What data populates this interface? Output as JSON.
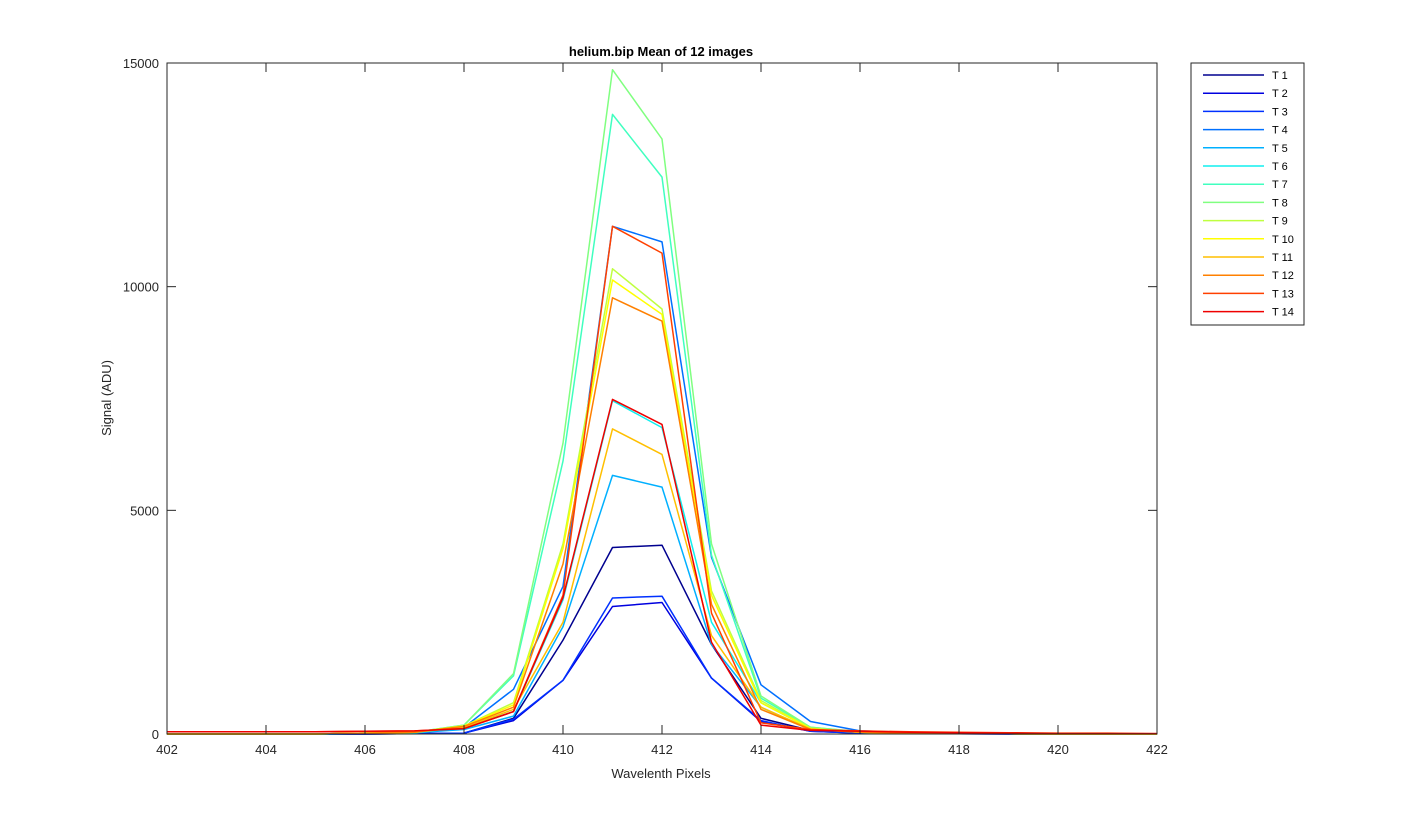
{
  "chart_data": {
    "type": "line",
    "title": "helium.bip  Mean of 12 images",
    "xlabel": "Wavelenth Pixels",
    "ylabel": "Signal (ADU)",
    "xlim": [
      402,
      422
    ],
    "ylim": [
      0,
      15000
    ],
    "xticks": [
      "402",
      "404",
      "406",
      "408",
      "410",
      "412",
      "414",
      "416",
      "418",
      "420",
      "422"
    ],
    "yticks": [
      "0",
      "5000",
      "10000",
      "15000"
    ],
    "grid": false,
    "legend_position": "outside-top-right",
    "x": [
      402,
      403,
      404,
      405,
      406,
      407,
      408,
      409,
      410,
      411,
      412,
      413,
      414,
      415,
      416,
      417,
      418,
      419,
      420,
      421,
      422
    ],
    "series": [
      {
        "name": "T 1",
        "color": "#00008f",
        "values": [
          0,
          0,
          0,
          0,
          0,
          10,
          20,
          350,
          2100,
          4170,
          4220,
          2000,
          350,
          80,
          30,
          20,
          10,
          5,
          0,
          0,
          0
        ]
      },
      {
        "name": "T 2",
        "color": "#0000df",
        "values": [
          0,
          0,
          0,
          0,
          0,
          10,
          20,
          300,
          1200,
          2850,
          2940,
          1250,
          280,
          60,
          20,
          10,
          5,
          0,
          0,
          0,
          0
        ]
      },
      {
        "name": "T 3",
        "color": "#0030ff",
        "values": [
          0,
          0,
          0,
          0,
          0,
          10,
          20,
          330,
          1200,
          3040,
          3080,
          1250,
          300,
          60,
          20,
          10,
          5,
          0,
          0,
          0,
          0
        ]
      },
      {
        "name": "T 4",
        "color": "#0070ff",
        "values": [
          0,
          0,
          0,
          0,
          20,
          30,
          150,
          1000,
          3300,
          11350,
          11000,
          3950,
          1100,
          280,
          70,
          40,
          30,
          20,
          10,
          10,
          0
        ]
      },
      {
        "name": "T 5",
        "color": "#00b0ff",
        "values": [
          0,
          0,
          0,
          0,
          10,
          30,
          100,
          400,
          2400,
          5780,
          5520,
          2000,
          600,
          100,
          40,
          20,
          10,
          5,
          0,
          0,
          0
        ]
      },
      {
        "name": "T 6",
        "color": "#10efef",
        "values": [
          0,
          0,
          0,
          0,
          10,
          30,
          150,
          500,
          3000,
          7450,
          6850,
          2500,
          700,
          120,
          40,
          20,
          10,
          5,
          0,
          0,
          0
        ]
      },
      {
        "name": "T 7",
        "color": "#40ffbf",
        "values": [
          0,
          0,
          0,
          0,
          20,
          40,
          200,
          1300,
          6100,
          13850,
          12450,
          4000,
          800,
          150,
          50,
          30,
          20,
          10,
          5,
          0,
          0
        ]
      },
      {
        "name": "T 8",
        "color": "#80ff80",
        "values": [
          0,
          0,
          0,
          0,
          20,
          40,
          200,
          1350,
          6500,
          14850,
          13300,
          4250,
          850,
          150,
          50,
          30,
          20,
          10,
          5,
          0,
          0
        ]
      },
      {
        "name": "T 9",
        "color": "#bfff40",
        "values": [
          0,
          0,
          0,
          0,
          20,
          40,
          180,
          700,
          4250,
          10400,
          9500,
          3200,
          750,
          130,
          40,
          20,
          10,
          5,
          0,
          0,
          0
        ]
      },
      {
        "name": "T 10",
        "color": "#ffff00",
        "values": [
          0,
          0,
          0,
          0,
          20,
          40,
          180,
          650,
          4150,
          10150,
          9380,
          3100,
          700,
          120,
          40,
          20,
          10,
          5,
          0,
          0,
          0
        ]
      },
      {
        "name": "T 11",
        "color": "#ffbf00",
        "values": [
          0,
          0,
          0,
          0,
          20,
          40,
          150,
          550,
          2500,
          6820,
          6250,
          2200,
          600,
          110,
          40,
          20,
          10,
          5,
          0,
          0,
          0
        ]
      },
      {
        "name": "T 12",
        "color": "#ff8000",
        "values": [
          0,
          0,
          0,
          0,
          20,
          40,
          170,
          600,
          3800,
          9750,
          9230,
          2900,
          550,
          100,
          40,
          20,
          10,
          5,
          0,
          0,
          0
        ]
      },
      {
        "name": "T 13",
        "color": "#ff4000",
        "values": [
          50,
          50,
          50,
          50,
          60,
          70,
          120,
          500,
          3100,
          11350,
          10750,
          2700,
          250,
          100,
          70,
          50,
          40,
          30,
          20,
          20,
          10
        ]
      },
      {
        "name": "T 14",
        "color": "#ef0000",
        "values": [
          50,
          50,
          50,
          50,
          60,
          70,
          120,
          500,
          3050,
          7480,
          6920,
          2050,
          200,
          80,
          60,
          40,
          30,
          20,
          10,
          10,
          10
        ]
      }
    ]
  }
}
